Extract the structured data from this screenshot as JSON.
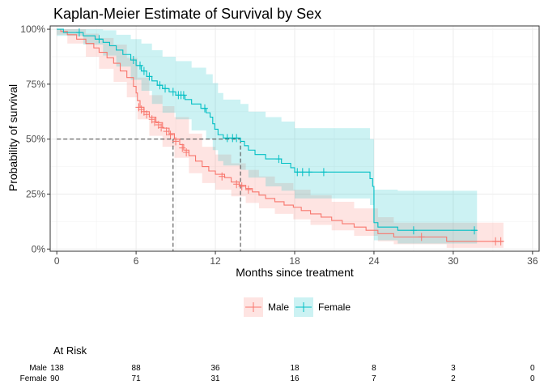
{
  "chart_data": {
    "type": "line",
    "title": "Kaplan-Meier Estimate of Survival by Sex",
    "xlabel": "Months since treatment",
    "ylabel": "Probability of survival",
    "xlim": [
      -0.5,
      36.5
    ],
    "ylim": [
      -0.01,
      1.015
    ],
    "x_ticks": [
      0,
      6,
      12,
      18,
      24,
      30,
      36
    ],
    "x_tick_labels": [
      "0",
      "6",
      "12",
      "18",
      "24",
      "30",
      "36"
    ],
    "y_ticks": [
      0,
      0.25,
      0.5,
      0.75,
      1.0
    ],
    "y_tick_labels": [
      "0%",
      "25%",
      "50%",
      "75%",
      "100%"
    ],
    "grid": true,
    "legend_position": "bottom",
    "median_line": {
      "y": 0.5,
      "x_values": [
        8.8,
        13.9
      ]
    },
    "series": [
      {
        "name": "Male",
        "color": "#F8766D",
        "fill": "#F8766D",
        "steps": [
          [
            0,
            1.0
          ],
          [
            0.3,
            0.99
          ],
          [
            0.8,
            0.975
          ],
          [
            1.5,
            0.955
          ],
          [
            2.2,
            0.935
          ],
          [
            2.8,
            0.915
          ],
          [
            3.2,
            0.895
          ],
          [
            3.8,
            0.87
          ],
          [
            4.3,
            0.845
          ],
          [
            4.8,
            0.81
          ],
          [
            5.3,
            0.78
          ],
          [
            5.8,
            0.74
          ],
          [
            6.0,
            0.71
          ],
          [
            6.1,
            0.675
          ],
          [
            6.3,
            0.645
          ],
          [
            6.6,
            0.625
          ],
          [
            7.0,
            0.6
          ],
          [
            7.5,
            0.575
          ],
          [
            8.0,
            0.55
          ],
          [
            8.5,
            0.525
          ],
          [
            8.9,
            0.5
          ],
          [
            9.3,
            0.475
          ],
          [
            9.6,
            0.45
          ],
          [
            10.0,
            0.425
          ],
          [
            10.5,
            0.4
          ],
          [
            11.0,
            0.375
          ],
          [
            11.5,
            0.355
          ],
          [
            12.0,
            0.34
          ],
          [
            12.7,
            0.325
          ],
          [
            13.2,
            0.305
          ],
          [
            13.8,
            0.29
          ],
          [
            14.3,
            0.275
          ],
          [
            14.8,
            0.26
          ],
          [
            15.3,
            0.245
          ],
          [
            15.8,
            0.23
          ],
          [
            16.5,
            0.215
          ],
          [
            17.2,
            0.2
          ],
          [
            17.9,
            0.19
          ],
          [
            18.5,
            0.175
          ],
          [
            19.2,
            0.16
          ],
          [
            20.0,
            0.145
          ],
          [
            20.8,
            0.13
          ],
          [
            21.6,
            0.115
          ],
          [
            22.5,
            0.1
          ],
          [
            23.4,
            0.085
          ],
          [
            24.3,
            0.07
          ],
          [
            25.5,
            0.055
          ],
          [
            29.5,
            0.035
          ],
          [
            33.8,
            0.035
          ]
        ],
        "lower": [
          [
            0,
            0.975
          ],
          [
            0.8,
            0.935
          ],
          [
            2.2,
            0.875
          ],
          [
            3.2,
            0.82
          ],
          [
            4.3,
            0.76
          ],
          [
            5.3,
            0.69
          ],
          [
            6.1,
            0.59
          ],
          [
            7.0,
            0.515
          ],
          [
            8.0,
            0.465
          ],
          [
            8.9,
            0.415
          ],
          [
            10.0,
            0.345
          ],
          [
            11.0,
            0.3
          ],
          [
            12.0,
            0.27
          ],
          [
            13.2,
            0.24
          ],
          [
            14.3,
            0.21
          ],
          [
            15.3,
            0.185
          ],
          [
            16.5,
            0.16
          ],
          [
            17.9,
            0.135
          ],
          [
            19.2,
            0.11
          ],
          [
            20.8,
            0.085
          ],
          [
            22.5,
            0.06
          ],
          [
            24.3,
            0.035
          ],
          [
            25.5,
            0.022
          ],
          [
            29.5,
            0.005
          ],
          [
            33.8,
            0.005
          ]
        ],
        "upper": [
          [
            0,
            1.0
          ],
          [
            2.2,
            0.98
          ],
          [
            3.2,
            0.96
          ],
          [
            4.3,
            0.93
          ],
          [
            5.3,
            0.87
          ],
          [
            6.1,
            0.78
          ],
          [
            7.0,
            0.7
          ],
          [
            8.0,
            0.65
          ],
          [
            8.9,
            0.6
          ],
          [
            10.0,
            0.525
          ],
          [
            11.0,
            0.465
          ],
          [
            12.0,
            0.43
          ],
          [
            13.2,
            0.39
          ],
          [
            14.3,
            0.36
          ],
          [
            15.3,
            0.33
          ],
          [
            16.5,
            0.3
          ],
          [
            17.9,
            0.27
          ],
          [
            19.2,
            0.245
          ],
          [
            20.8,
            0.215
          ],
          [
            22.5,
            0.185
          ],
          [
            24.3,
            0.145
          ],
          [
            25.5,
            0.12
          ],
          [
            29.5,
            0.12
          ],
          [
            33.8,
            0.12
          ]
        ],
        "censored": [
          [
            6.2,
            0.645
          ],
          [
            6.4,
            0.635
          ],
          [
            6.6,
            0.625
          ],
          [
            6.8,
            0.612
          ],
          [
            7.2,
            0.59
          ],
          [
            7.4,
            0.578
          ],
          [
            7.7,
            0.565
          ],
          [
            7.9,
            0.553
          ],
          [
            8.3,
            0.535
          ],
          [
            8.6,
            0.52
          ],
          [
            9.0,
            0.49
          ],
          [
            9.5,
            0.46
          ],
          [
            9.8,
            0.44
          ],
          [
            12.5,
            0.33
          ],
          [
            13.6,
            0.295
          ],
          [
            14.0,
            0.285
          ],
          [
            14.5,
            0.27
          ],
          [
            27.6,
            0.055
          ],
          [
            33.2,
            0.035
          ],
          [
            33.6,
            0.035
          ]
        ]
      },
      {
        "name": "Female",
        "color": "#00BFC4",
        "fill": "#00BFC4",
        "steps": [
          [
            0,
            1.0
          ],
          [
            0.5,
            0.985
          ],
          [
            2.0,
            0.97
          ],
          [
            2.9,
            0.955
          ],
          [
            3.5,
            0.94
          ],
          [
            4.0,
            0.925
          ],
          [
            4.5,
            0.905
          ],
          [
            5.0,
            0.885
          ],
          [
            5.6,
            0.86
          ],
          [
            6.0,
            0.835
          ],
          [
            6.4,
            0.81
          ],
          [
            6.8,
            0.785
          ],
          [
            7.2,
            0.765
          ],
          [
            7.6,
            0.745
          ],
          [
            8.0,
            0.73
          ],
          [
            8.5,
            0.715
          ],
          [
            9.0,
            0.7
          ],
          [
            9.7,
            0.68
          ],
          [
            10.2,
            0.66
          ],
          [
            10.9,
            0.64
          ],
          [
            11.3,
            0.62
          ],
          [
            11.6,
            0.6
          ],
          [
            11.8,
            0.57
          ],
          [
            11.95,
            0.545
          ],
          [
            12.2,
            0.52
          ],
          [
            12.6,
            0.505
          ],
          [
            13.9,
            0.49
          ],
          [
            14.2,
            0.47
          ],
          [
            14.5,
            0.45
          ],
          [
            15.0,
            0.43
          ],
          [
            15.8,
            0.41
          ],
          [
            17.0,
            0.39
          ],
          [
            17.7,
            0.37
          ],
          [
            18.0,
            0.35
          ],
          [
            23.7,
            0.32
          ],
          [
            23.9,
            0.285
          ],
          [
            24.0,
            0.12
          ],
          [
            24.3,
            0.1
          ],
          [
            25.8,
            0.085
          ],
          [
            31.8,
            0.085
          ]
        ],
        "lower": [
          [
            0,
            0.97
          ],
          [
            2.0,
            0.93
          ],
          [
            3.5,
            0.88
          ],
          [
            4.5,
            0.83
          ],
          [
            5.6,
            0.77
          ],
          [
            6.4,
            0.72
          ],
          [
            7.2,
            0.66
          ],
          [
            8.0,
            0.62
          ],
          [
            9.0,
            0.59
          ],
          [
            10.2,
            0.54
          ],
          [
            11.3,
            0.5
          ],
          [
            11.8,
            0.45
          ],
          [
            12.2,
            0.4
          ],
          [
            12.6,
            0.38
          ],
          [
            13.9,
            0.36
          ],
          [
            14.5,
            0.325
          ],
          [
            15.8,
            0.285
          ],
          [
            17.0,
            0.265
          ],
          [
            18.0,
            0.23
          ],
          [
            23.7,
            0.2
          ],
          [
            24.0,
            0.04
          ],
          [
            25.8,
            0.025
          ],
          [
            31.8,
            0.025
          ]
        ],
        "upper": [
          [
            0,
            1.0
          ],
          [
            3.5,
            0.995
          ],
          [
            4.5,
            0.975
          ],
          [
            5.6,
            0.955
          ],
          [
            6.4,
            0.935
          ],
          [
            7.2,
            0.905
          ],
          [
            8.0,
            0.875
          ],
          [
            9.0,
            0.855
          ],
          [
            10.2,
            0.825
          ],
          [
            11.3,
            0.795
          ],
          [
            11.8,
            0.755
          ],
          [
            12.2,
            0.71
          ],
          [
            12.6,
            0.68
          ],
          [
            13.9,
            0.66
          ],
          [
            14.5,
            0.625
          ],
          [
            15.8,
            0.6
          ],
          [
            17.0,
            0.58
          ],
          [
            18.0,
            0.55
          ],
          [
            23.7,
            0.5
          ],
          [
            24.0,
            0.27
          ],
          [
            25.8,
            0.265
          ],
          [
            31.8,
            0.265
          ]
        ],
        "censored": [
          [
            1.7,
            0.985
          ],
          [
            3.2,
            0.955
          ],
          [
            5.8,
            0.86
          ],
          [
            6.3,
            0.835
          ],
          [
            6.6,
            0.81
          ],
          [
            7.0,
            0.785
          ],
          [
            7.8,
            0.745
          ],
          [
            8.2,
            0.73
          ],
          [
            8.8,
            0.715
          ],
          [
            9.2,
            0.7
          ],
          [
            9.4,
            0.7
          ],
          [
            9.6,
            0.7
          ],
          [
            11.2,
            0.64
          ],
          [
            12.9,
            0.505
          ],
          [
            13.3,
            0.505
          ],
          [
            13.6,
            0.505
          ],
          [
            16.8,
            0.41
          ],
          [
            18.2,
            0.35
          ],
          [
            18.6,
            0.35
          ],
          [
            19.1,
            0.35
          ],
          [
            20.2,
            0.35
          ],
          [
            27.0,
            0.085
          ],
          [
            31.6,
            0.085
          ]
        ]
      }
    ],
    "risk_table": {
      "title": "At Risk",
      "times": [
        0,
        6,
        12,
        18,
        24,
        30,
        36
      ],
      "rows": [
        {
          "label": "Male",
          "counts": [
            "138",
            "88",
            "36",
            "18",
            "8",
            "3",
            "0"
          ]
        },
        {
          "label": "Female",
          "counts": [
            "90",
            "71",
            "31",
            "16",
            "7",
            "2",
            "0"
          ]
        }
      ]
    }
  }
}
